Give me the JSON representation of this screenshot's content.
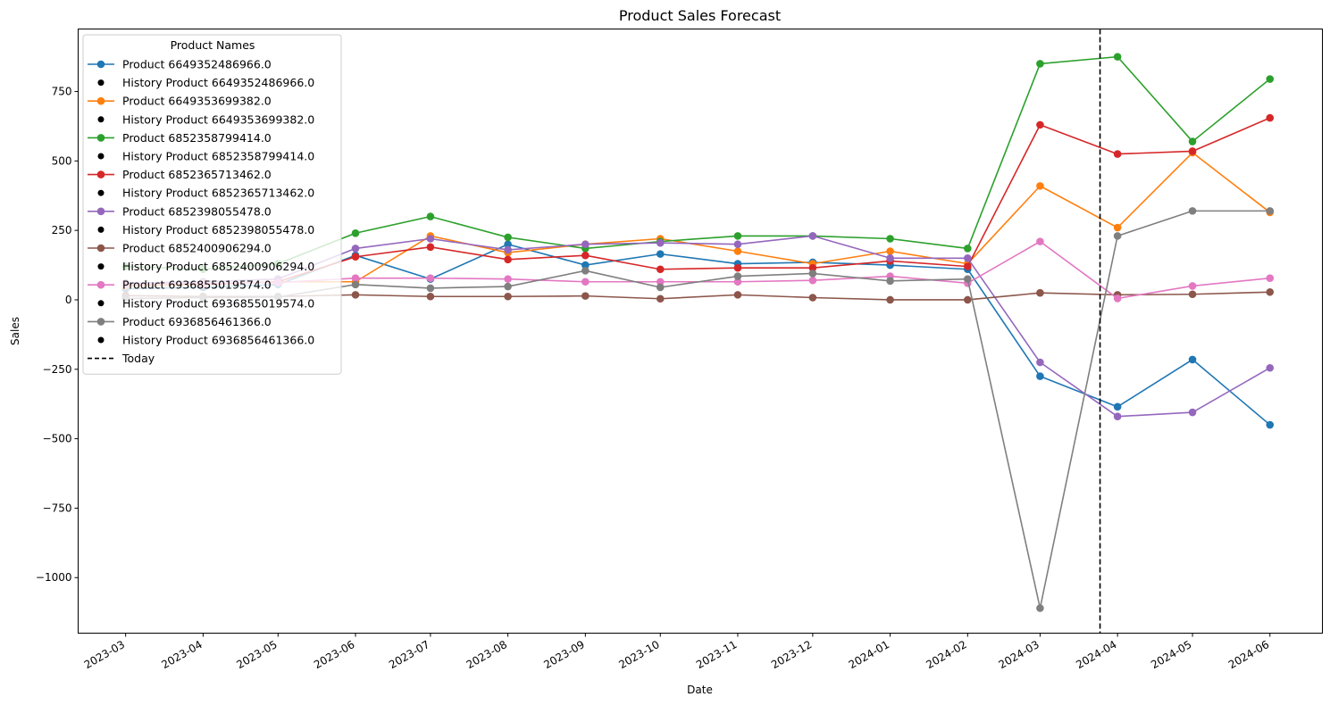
{
  "chart_data": {
    "type": "line",
    "title": "Product Sales Forecast",
    "xlabel": "Date",
    "ylabel": "Sales",
    "x": [
      "2023-03-01",
      "2023-04-01",
      "2023-05-01",
      "2023-06-01",
      "2023-07-01",
      "2023-08-01",
      "2023-09-01",
      "2023-10-01",
      "2023-11-01",
      "2023-12-01",
      "2024-01-01",
      "2024-02-01",
      "2024-03-01",
      "2024-04-01",
      "2024-05-01",
      "2024-06-01"
    ],
    "xlim": [
      "2023-02-10",
      "2024-06-22"
    ],
    "x_tick_labels": [
      "2023-03",
      "2023-04",
      "2023-05",
      "2023-06",
      "2023-07",
      "2023-08",
      "2023-09",
      "2023-10",
      "2023-11",
      "2023-12",
      "2024-01",
      "2024-02",
      "2024-03",
      "2024-04",
      "2024-05",
      "2024-06"
    ],
    "ylim": [
      -1200,
      975
    ],
    "y_ticks": [
      750,
      500,
      250,
      0,
      -250,
      -500,
      -750,
      -1000
    ],
    "y_tick_labels": [
      "750",
      "500",
      "250",
      "0",
      "−250",
      "−500",
      "−750",
      "−1000"
    ],
    "today": "2024-03-25",
    "today_label": "Today",
    "legend_title": "Product Names",
    "legend_position": "upper-left",
    "grid": false,
    "series": [
      {
        "name": "Product 6649352486966.0",
        "history_name": "History Product 6649352486966.0",
        "color": "#1f77b4",
        "values": [
          40,
          45,
          55,
          160,
          75,
          200,
          125,
          165,
          130,
          135,
          125,
          110,
          -275,
          -385,
          -215,
          -450
        ]
      },
      {
        "name": "Product 6649353699382.0",
        "history_name": "History Product 6649353699382.0",
        "color": "#ff7f0e",
        "values": [
          50,
          55,
          65,
          65,
          230,
          170,
          200,
          220,
          175,
          130,
          175,
          130,
          410,
          260,
          530,
          315
        ]
      },
      {
        "name": "Product 6852358799414.0",
        "history_name": "History Product 6852358799414.0",
        "color": "#2ca02c",
        "values": [
          120,
          110,
          130,
          240,
          300,
          225,
          185,
          210,
          230,
          230,
          220,
          185,
          850,
          875,
          570,
          795
        ]
      },
      {
        "name": "Product 6852365713462.0",
        "history_name": "History Product 6852365713462.0",
        "color": "#d62728",
        "values": [
          60,
          55,
          65,
          155,
          190,
          145,
          160,
          110,
          115,
          115,
          140,
          120,
          630,
          525,
          535,
          655
        ]
      },
      {
        "name": "Product 6852398055478.0",
        "history_name": "History Product 6852398055478.0",
        "color": "#9467bd",
        "values": [
          60,
          65,
          75,
          185,
          220,
          180,
          200,
          205,
          200,
          230,
          150,
          150,
          -225,
          -420,
          -405,
          -245
        ]
      },
      {
        "name": "Product 6852400906294.0",
        "history_name": "History Product 6852400906294.0",
        "color": "#8c564b",
        "values": [
          15,
          12,
          12,
          18,
          12,
          12,
          14,
          4,
          18,
          8,
          0,
          0,
          25,
          18,
          20,
          28
        ]
      },
      {
        "name": "Product 6936855019574.0",
        "history_name": "History Product 6936855019574.0",
        "color": "#e377c2",
        "values": [
          55,
          60,
          62,
          78,
          78,
          75,
          65,
          65,
          65,
          70,
          85,
          60,
          210,
          5,
          50,
          78
        ]
      },
      {
        "name": "Product 6936856461366.0",
        "history_name": "History Product 6936856461366.0",
        "color": "#7f7f7f",
        "values": [
          5,
          8,
          10,
          55,
          42,
          48,
          105,
          45,
          85,
          95,
          68,
          75,
          -1110,
          230,
          320,
          320
        ]
      }
    ]
  }
}
